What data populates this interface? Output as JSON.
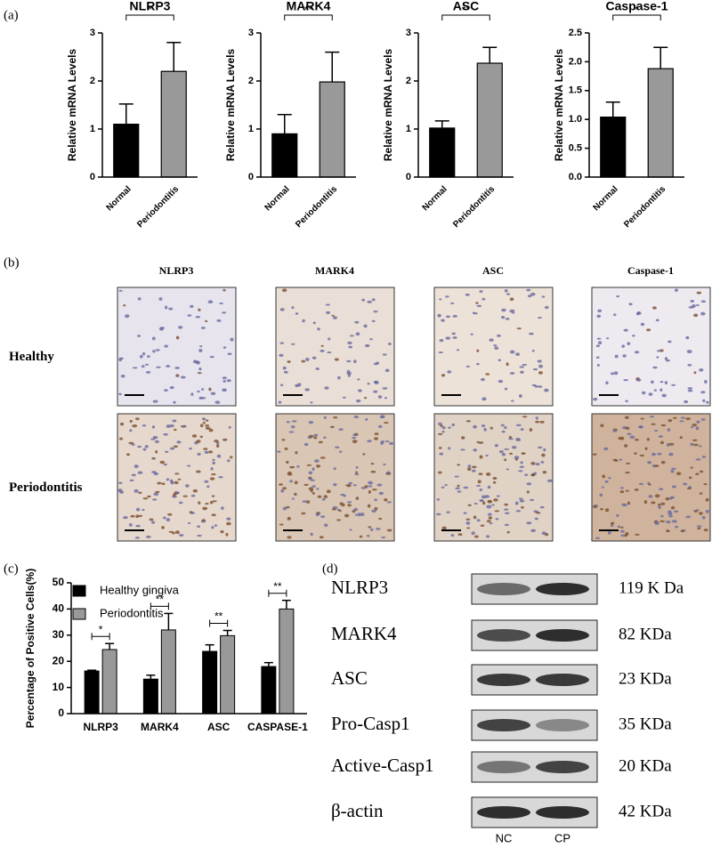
{
  "panel_labels": [
    "(a)",
    "(b)",
    "(c)",
    "(d)"
  ],
  "chart_data": [
    {
      "type": "bar",
      "title": "NLRP3",
      "ylabel": "Relative mRNA Levels",
      "categories": [
        "Normal",
        "Periodontitis"
      ],
      "values": [
        1.1,
        2.2
      ],
      "errors": [
        0.42,
        0.6
      ],
      "colors": [
        "#000000",
        "#999999"
      ],
      "ylim": [
        0,
        3
      ],
      "yticks": [
        0,
        1,
        2,
        3
      ],
      "significance": [
        "*"
      ]
    },
    {
      "type": "bar",
      "title": "MARK4",
      "ylabel": "Relative mRNA Levels",
      "categories": [
        "Normal",
        "Periodontitis"
      ],
      "values": [
        0.9,
        1.98
      ],
      "errors": [
        0.4,
        0.62
      ],
      "colors": [
        "#000000",
        "#999999"
      ],
      "ylim": [
        0,
        3
      ],
      "yticks": [
        0,
        1,
        2,
        3
      ],
      "significance": [
        "**"
      ]
    },
    {
      "type": "bar",
      "title": "ASC",
      "ylabel": "Relative mRNA Levels",
      "categories": [
        "Normal",
        "Periodontitis"
      ],
      "values": [
        1.02,
        2.37
      ],
      "errors": [
        0.15,
        0.33
      ],
      "colors": [
        "#000000",
        "#999999"
      ],
      "ylim": [
        0,
        3
      ],
      "yticks": [
        0,
        1,
        2,
        3
      ],
      "significance": [
        "**"
      ]
    },
    {
      "type": "bar",
      "title": "Caspase-1",
      "ylabel": "Relative mRNA Levels",
      "categories": [
        "Normal",
        "Periodontitis"
      ],
      "values": [
        1.04,
        1.88
      ],
      "errors": [
        0.26,
        0.37
      ],
      "colors": [
        "#000000",
        "#999999"
      ],
      "ylim": [
        0,
        2.5
      ],
      "yticks": [
        {
          "value": 0,
          "label": "0.0"
        },
        0.5,
        {
          "value": 1,
          "label": "1.0"
        },
        1.5,
        {
          "value": 2,
          "label": "2.0"
        },
        2.5
      ],
      "significance": [
        "*"
      ]
    },
    {
      "type": "grouped_bar",
      "ylabel": "Percentage of Positive Cells(%)",
      "categories": [
        "NLRP3",
        "MARK4",
        "ASC",
        "CASPASE-1"
      ],
      "series": [
        {
          "name": "Healthy gingiva",
          "color": "#000000",
          "values": [
            16.3,
            13.2,
            23.8,
            18
          ],
          "errors": [
            0.3,
            1.5,
            2.5,
            1.5
          ]
        },
        {
          "name": "Periodontitis",
          "color": "#999999",
          "values": [
            24.5,
            32,
            29.8,
            40
          ],
          "errors": [
            2.3,
            6.3,
            2,
            3.3
          ]
        }
      ],
      "ylim": [
        0,
        50
      ],
      "yticks": [
        0,
        10,
        20,
        30,
        40,
        50
      ],
      "significance": [
        "*",
        "**",
        "**",
        "**"
      ]
    }
  ],
  "ihc": {
    "columns": [
      "NLRP3",
      "MARK4",
      "ASC",
      "Caspase-1"
    ],
    "rows": [
      "Healthy",
      "Periodontitis"
    ]
  },
  "western_blot": {
    "proteins": [
      "NLRP3",
      "MARK4",
      "ASC",
      "Pro-Casp1",
      "Active-Casp1",
      "β-actin"
    ],
    "sizes": [
      "119 K Da",
      "82 KDa",
      "23 KDa",
      "35 KDa",
      "20 KDa",
      "42 KDa"
    ],
    "lanes": [
      "NC",
      "CP"
    ]
  }
}
